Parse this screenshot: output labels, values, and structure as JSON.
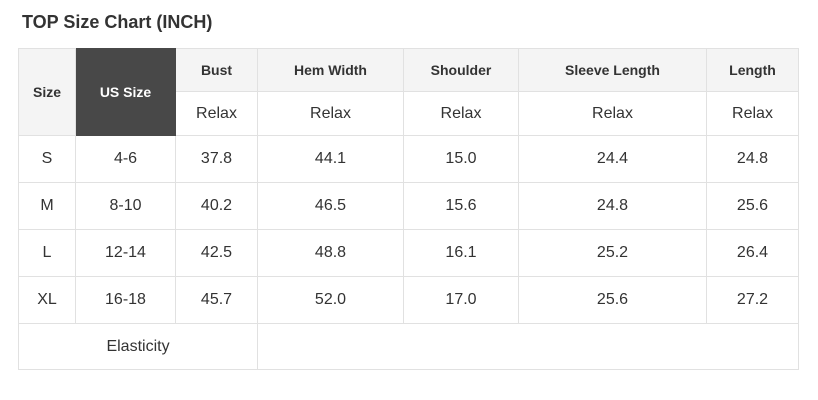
{
  "title": "TOP Size Chart (INCH)",
  "colors": {
    "header_bg": "#f4f4f4",
    "dark_cell_bg": "#484848",
    "dark_cell_text": "#ffffff",
    "border": "#e1e1e1",
    "text": "#333333"
  },
  "table": {
    "headers": {
      "size": "Size",
      "us_size": "US Size",
      "measures": [
        "Bust",
        "Hem Width",
        "Shoulder",
        "Sleeve Length",
        "Length"
      ]
    },
    "fit": [
      "Relax",
      "Relax",
      "Relax",
      "Relax",
      "Relax"
    ],
    "rows": [
      {
        "size": "S",
        "us_size": "4-6",
        "bust": "37.8",
        "hem_width": "44.1",
        "shoulder": "15.0",
        "sleeve_length": "24.4",
        "length": "24.8"
      },
      {
        "size": "M",
        "us_size": "8-10",
        "bust": "40.2",
        "hem_width": "46.5",
        "shoulder": "15.6",
        "sleeve_length": "24.8",
        "length": "25.6"
      },
      {
        "size": "L",
        "us_size": "12-14",
        "bust": "42.5",
        "hem_width": "48.8",
        "shoulder": "16.1",
        "sleeve_length": "25.2",
        "length": "26.4"
      },
      {
        "size": "XL",
        "us_size": "16-18",
        "bust": "45.7",
        "hem_width": "52.0",
        "shoulder": "17.0",
        "sleeve_length": "25.6",
        "length": "27.2"
      }
    ],
    "footer": {
      "elasticity_label": "Elasticity",
      "elasticity_value": ""
    }
  },
  "chart_data": {
    "type": "table",
    "title": "TOP Size Chart (INCH)",
    "columns": [
      "Size",
      "US Size",
      "Bust",
      "Hem Width",
      "Shoulder",
      "Sleeve Length",
      "Length"
    ],
    "fit_row": [
      "",
      "",
      "Relax",
      "Relax",
      "Relax",
      "Relax",
      "Relax"
    ],
    "rows": [
      [
        "S",
        "4-6",
        "37.8",
        "44.1",
        "15.0",
        "24.4",
        "24.8"
      ],
      [
        "M",
        "8-10",
        "40.2",
        "46.5",
        "15.6",
        "24.8",
        "25.6"
      ],
      [
        "L",
        "12-14",
        "42.5",
        "48.8",
        "16.1",
        "25.2",
        "26.4"
      ],
      [
        "XL",
        "16-18",
        "45.7",
        "52.0",
        "17.0",
        "25.6",
        "27.2"
      ]
    ],
    "footer": [
      "Elasticity",
      ""
    ]
  }
}
